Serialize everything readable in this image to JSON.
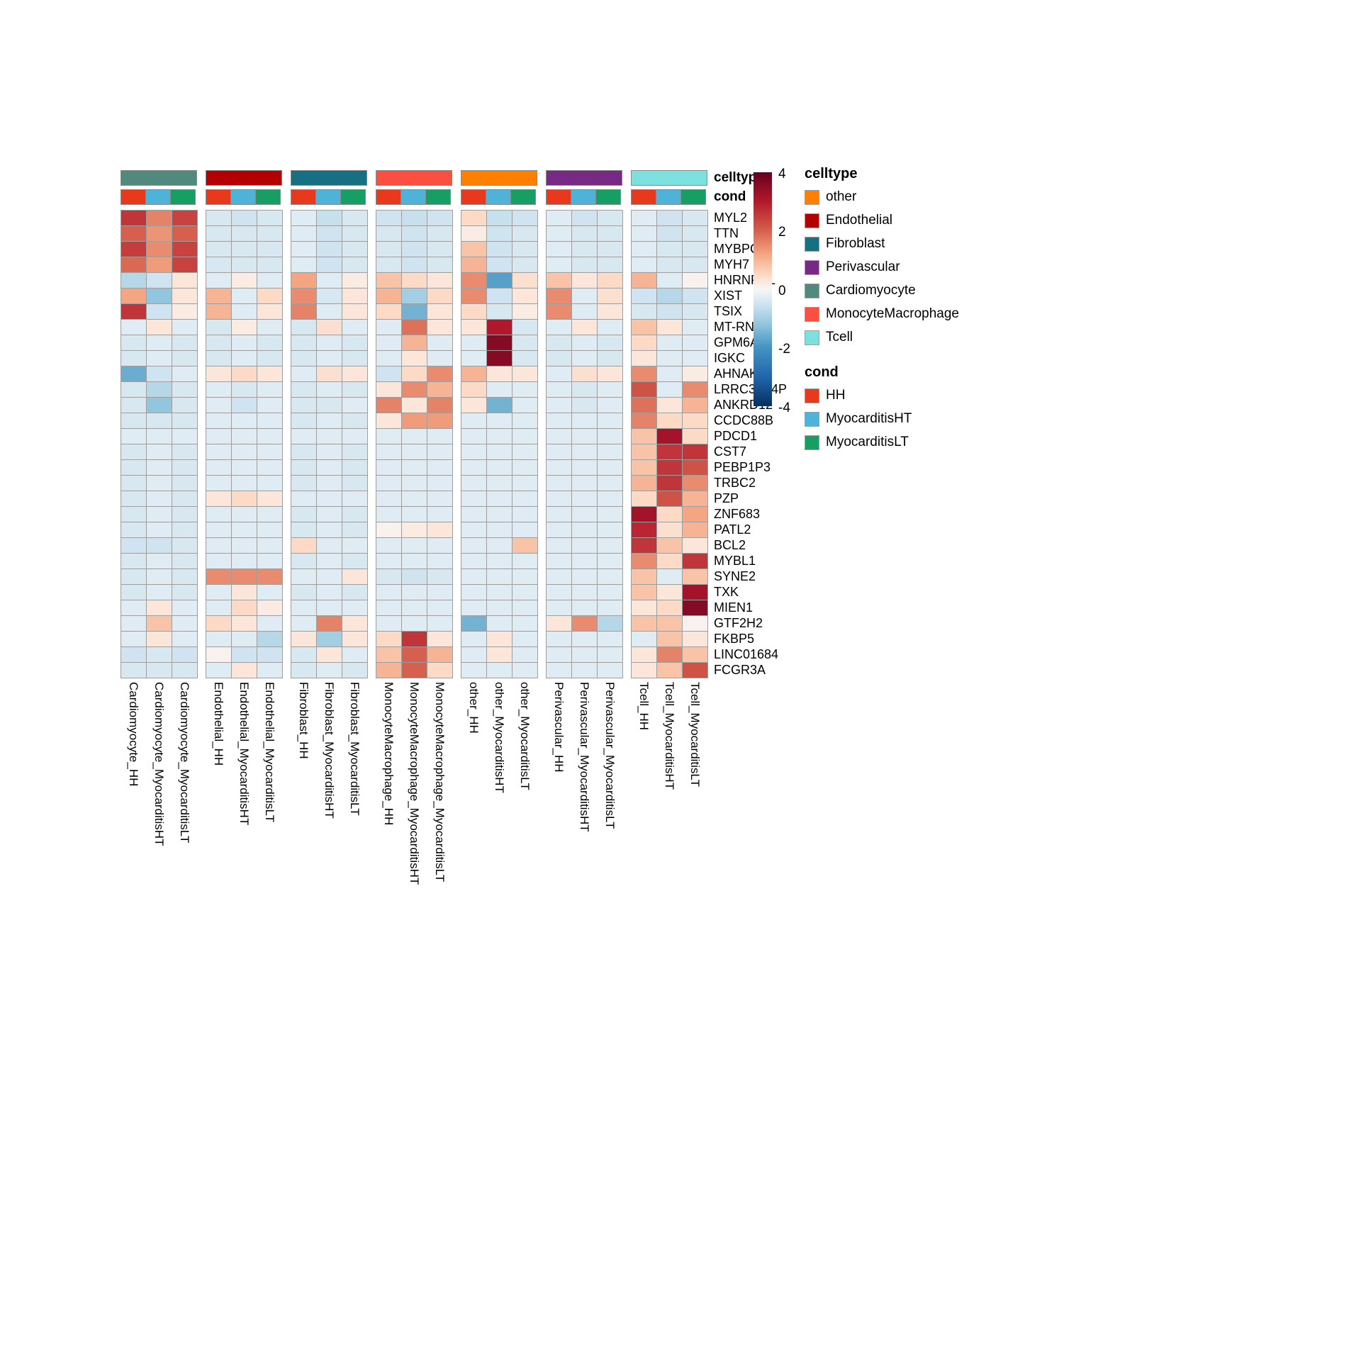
{
  "chart_data": {
    "type": "heatmap",
    "value_range": [
      -4,
      4
    ],
    "genes": [
      "MYL2",
      "TTN",
      "MYBPC3",
      "MYH7",
      "HNRNPDL",
      "XIST",
      "TSIX",
      "MT-RNR2",
      "GPM6A",
      "IGKC",
      "AHNAK",
      "LRRC37A4P",
      "ANKRD12",
      "CCDC88B",
      "PDCD1",
      "CST7",
      "PEBP1P3",
      "TRBC2",
      "PZP",
      "ZNF683",
      "PATL2",
      "BCL2",
      "MYBL1",
      "SYNE2",
      "TXK",
      "MIEN1",
      "GTF2H2",
      "FKBP5",
      "LINC01684",
      "FCGR3A"
    ],
    "groups": [
      {
        "name": "Cardiomyocyte",
        "color": "#52897F"
      },
      {
        "name": "Endothelial",
        "color": "#B30000"
      },
      {
        "name": "Fibroblast",
        "color": "#177082"
      },
      {
        "name": "MonocyteMacrophage",
        "color": "#FB4F42"
      },
      {
        "name": "other",
        "color": "#FF7F00"
      },
      {
        "name": "Perivascular",
        "color": "#762A83"
      },
      {
        "name": "Tcell",
        "color": "#7CE0DE"
      }
    ],
    "conds": [
      {
        "name": "HH",
        "color": "#E8391D"
      },
      {
        "name": "MyocarditisHT",
        "color": "#4FB2D9"
      },
      {
        "name": "MyocarditisLT",
        "color": "#169E64"
      }
    ],
    "column_labels": [
      "Cardiomyocyte_HH",
      "Cardiomyocyte_MyocarditisHT",
      "Cardiomyocyte_MyocarditisLT",
      "Endothelial_HH",
      "Endothelial_MyocarditisHT",
      "Endothelial_MyocarditisLT",
      "Fibroblast_HH",
      "Fibroblast_MyocarditisHT",
      "Fibroblast_MyocarditisLT",
      "MonocyteMacrophage_HH",
      "MonocyteMacrophage_MyocarditisHT",
      "MonocyteMacrophage_MyocarditisLT",
      "other_HH",
      "other_MyocarditisHT",
      "other_MyocarditisLT",
      "Perivascular_HH",
      "Perivascular_MyocarditisHT",
      "Perivascular_MyocarditisLT",
      "Tcell_HH",
      "Tcell_MyocarditisHT",
      "Tcell_MyocarditisLT"
    ],
    "values": [
      [
        2.6,
        1.6,
        2.4,
        -0.4,
        -0.5,
        -0.4,
        -0.3,
        -0.6,
        -0.4,
        -0.5,
        -0.6,
        -0.5,
        0.5,
        -0.6,
        -0.5,
        -0.3,
        -0.5,
        -0.4,
        -0.3,
        -0.5,
        -0.4
      ],
      [
        2.0,
        1.4,
        2.0,
        -0.4,
        -0.4,
        -0.4,
        -0.3,
        -0.5,
        -0.4,
        -0.4,
        -0.5,
        -0.4,
        0.2,
        -0.5,
        -0.4,
        -0.3,
        -0.4,
        -0.4,
        -0.3,
        -0.5,
        -0.4
      ],
      [
        2.5,
        1.5,
        2.4,
        -0.4,
        -0.4,
        -0.4,
        -0.3,
        -0.5,
        -0.4,
        -0.4,
        -0.5,
        -0.4,
        0.8,
        -0.5,
        -0.4,
        -0.3,
        -0.4,
        -0.4,
        -0.3,
        -0.4,
        -0.4
      ],
      [
        1.9,
        1.3,
        2.4,
        -0.4,
        -0.4,
        -0.4,
        -0.3,
        -0.5,
        -0.4,
        -0.4,
        -0.5,
        -0.4,
        1.0,
        -0.5,
        -0.4,
        -0.3,
        -0.4,
        -0.4,
        -0.3,
        -0.4,
        -0.4
      ],
      [
        -0.8,
        -0.5,
        0.3,
        -0.3,
        0.2,
        -0.3,
        1.2,
        -0.3,
        0.2,
        0.8,
        0.5,
        0.3,
        1.5,
        -1.8,
        0.4,
        0.8,
        0.3,
        0.5,
        1.0,
        -0.3,
        0.1
      ],
      [
        1.2,
        -1.2,
        0.3,
        1.0,
        -0.3,
        0.5,
        1.5,
        -0.4,
        0.3,
        1.0,
        -1.0,
        0.5,
        1.5,
        -0.5,
        0.3,
        1.5,
        -0.3,
        0.4,
        -0.5,
        -0.8,
        -0.5
      ],
      [
        2.6,
        -0.5,
        0.2,
        1.0,
        -0.3,
        0.3,
        1.6,
        -0.3,
        0.3,
        0.5,
        -1.5,
        0.3,
        0.5,
        -0.4,
        0.2,
        1.5,
        -0.3,
        0.3,
        -0.4,
        -0.5,
        -0.4
      ],
      [
        -0.3,
        0.3,
        -0.3,
        -0.4,
        0.2,
        -0.3,
        -0.4,
        0.4,
        -0.3,
        -0.3,
        1.8,
        0.3,
        0.3,
        3.0,
        -0.4,
        -0.3,
        0.3,
        -0.3,
        0.8,
        0.3,
        -0.3
      ],
      [
        -0.4,
        -0.3,
        -0.4,
        -0.4,
        -0.3,
        -0.4,
        -0.4,
        -0.3,
        -0.4,
        -0.3,
        1.0,
        -0.3,
        -0.3,
        3.6,
        -0.4,
        -0.4,
        -0.3,
        -0.4,
        0.5,
        -0.3,
        -0.3
      ],
      [
        -0.4,
        -0.3,
        -0.4,
        -0.4,
        -0.3,
        -0.4,
        -0.4,
        -0.3,
        -0.4,
        -0.3,
        0.3,
        -0.3,
        -0.3,
        3.6,
        -0.4,
        -0.4,
        -0.3,
        -0.4,
        0.3,
        -0.3,
        -0.3
      ],
      [
        -1.6,
        -0.5,
        -0.3,
        0.3,
        0.5,
        0.3,
        -0.3,
        0.4,
        0.3,
        -0.5,
        0.5,
        1.5,
        1.0,
        0.3,
        0.3,
        -0.3,
        0.4,
        0.3,
        1.5,
        -0.3,
        0.2
      ],
      [
        -0.4,
        -0.8,
        -0.4,
        -0.3,
        -0.4,
        -0.3,
        -0.4,
        -0.3,
        -0.4,
        0.3,
        1.5,
        1.0,
        0.5,
        -0.3,
        -0.3,
        -0.3,
        -0.4,
        -0.3,
        2.2,
        -0.3,
        1.5
      ],
      [
        -0.4,
        -1.2,
        -0.4,
        -0.3,
        -0.5,
        -0.3,
        -0.4,
        -0.4,
        -0.3,
        1.6,
        0.3,
        1.6,
        0.3,
        -1.5,
        -0.3,
        -0.3,
        -0.4,
        -0.3,
        1.8,
        0.3,
        1.0
      ],
      [
        -0.4,
        -0.4,
        -0.4,
        -0.3,
        -0.3,
        -0.3,
        -0.4,
        -0.3,
        -0.4,
        0.3,
        1.3,
        1.3,
        -0.3,
        -0.3,
        -0.3,
        -0.3,
        -0.3,
        -0.3,
        1.6,
        0.5,
        0.5
      ],
      [
        -0.3,
        -0.3,
        -0.3,
        -0.3,
        -0.3,
        -0.3,
        -0.3,
        -0.3,
        -0.3,
        -0.3,
        -0.3,
        -0.3,
        -0.3,
        -0.3,
        -0.3,
        -0.3,
        -0.3,
        -0.3,
        0.8,
        3.2,
        0.5
      ],
      [
        -0.4,
        -0.3,
        -0.4,
        -0.3,
        -0.3,
        -0.3,
        -0.4,
        -0.3,
        -0.4,
        -0.3,
        -0.3,
        -0.3,
        -0.3,
        -0.3,
        -0.3,
        -0.3,
        -0.3,
        -0.3,
        0.8,
        2.6,
        2.6
      ],
      [
        -0.4,
        -0.3,
        -0.4,
        -0.3,
        -0.3,
        -0.3,
        -0.4,
        -0.3,
        -0.4,
        -0.3,
        -0.3,
        -0.3,
        -0.3,
        -0.3,
        -0.3,
        -0.3,
        -0.3,
        -0.3,
        0.8,
        2.6,
        2.2
      ],
      [
        -0.4,
        -0.3,
        -0.4,
        -0.3,
        -0.3,
        -0.3,
        -0.4,
        -0.3,
        -0.4,
        -0.3,
        -0.3,
        -0.3,
        -0.3,
        -0.3,
        -0.3,
        -0.3,
        -0.3,
        -0.3,
        1.0,
        2.6,
        1.5
      ],
      [
        -0.4,
        -0.3,
        -0.4,
        0.3,
        0.5,
        0.3,
        -0.3,
        -0.3,
        -0.3,
        -0.3,
        -0.3,
        -0.3,
        -0.3,
        -0.3,
        -0.3,
        -0.3,
        -0.3,
        -0.3,
        0.5,
        2.2,
        1.0
      ],
      [
        -0.4,
        -0.3,
        -0.4,
        -0.3,
        -0.3,
        -0.3,
        -0.4,
        -0.3,
        -0.4,
        -0.3,
        -0.3,
        -0.3,
        -0.3,
        -0.3,
        -0.3,
        -0.3,
        -0.3,
        -0.3,
        3.2,
        0.5,
        1.2
      ],
      [
        -0.4,
        -0.3,
        -0.4,
        -0.3,
        -0.3,
        -0.3,
        -0.4,
        -0.3,
        -0.4,
        0.1,
        0.2,
        0.3,
        -0.3,
        -0.3,
        -0.3,
        -0.3,
        -0.3,
        -0.3,
        2.8,
        0.4,
        1.0
      ],
      [
        -0.5,
        -0.5,
        -0.4,
        -0.3,
        -0.3,
        -0.3,
        0.5,
        -0.3,
        -0.3,
        -0.3,
        -0.3,
        -0.3,
        -0.3,
        -0.3,
        0.8,
        -0.3,
        -0.3,
        -0.3,
        2.6,
        0.8,
        0.3
      ],
      [
        -0.4,
        -0.3,
        -0.4,
        -0.3,
        -0.3,
        -0.3,
        -0.4,
        -0.3,
        -0.4,
        -0.3,
        -0.3,
        -0.3,
        -0.3,
        -0.3,
        -0.3,
        -0.3,
        -0.3,
        -0.3,
        1.5,
        0.5,
        2.6
      ],
      [
        -0.4,
        -0.3,
        -0.4,
        1.5,
        1.5,
        1.5,
        -0.3,
        -0.3,
        0.3,
        -0.4,
        -0.5,
        -0.4,
        -0.3,
        -0.3,
        -0.3,
        -0.3,
        -0.3,
        -0.3,
        0.8,
        -0.3,
        0.8
      ],
      [
        -0.4,
        -0.3,
        -0.4,
        -0.3,
        0.3,
        -0.3,
        -0.4,
        -0.3,
        -0.4,
        -0.3,
        -0.3,
        -0.3,
        -0.3,
        -0.3,
        -0.3,
        -0.3,
        -0.3,
        -0.3,
        0.8,
        0.3,
        3.2
      ],
      [
        -0.3,
        0.3,
        -0.3,
        -0.3,
        0.5,
        0.2,
        -0.3,
        -0.3,
        -0.3,
        -0.3,
        -0.3,
        -0.3,
        -0.3,
        -0.3,
        -0.3,
        -0.3,
        -0.3,
        -0.3,
        0.3,
        0.5,
        3.6
      ],
      [
        -0.3,
        0.8,
        -0.3,
        0.5,
        0.3,
        -0.3,
        -0.3,
        1.6,
        0.3,
        -0.3,
        -0.3,
        -0.3,
        -1.5,
        -0.3,
        -0.3,
        0.3,
        1.5,
        -0.8,
        0.8,
        0.8,
        0.1
      ],
      [
        -0.3,
        0.3,
        -0.3,
        -0.3,
        -0.3,
        -0.8,
        0.3,
        -1.0,
        0.3,
        0.5,
        2.6,
        0.3,
        -0.3,
        0.3,
        -0.3,
        -0.3,
        -0.3,
        -0.3,
        -0.3,
        0.8,
        0.3
      ],
      [
        -0.5,
        -0.4,
        -0.5,
        0.1,
        -0.5,
        -0.5,
        -0.4,
        0.3,
        -0.3,
        0.8,
        2.0,
        1.0,
        -0.3,
        0.3,
        -0.3,
        -0.3,
        -0.3,
        -0.3,
        0.3,
        1.6,
        0.8
      ],
      [
        -0.4,
        -0.4,
        -0.4,
        -0.3,
        0.3,
        -0.3,
        -0.4,
        -0.3,
        -0.4,
        1.0,
        2.0,
        0.5,
        -0.3,
        -0.3,
        -0.3,
        -0.3,
        -0.3,
        -0.3,
        0.3,
        0.8,
        2.2
      ]
    ],
    "colorscale": [
      {
        "t": -1.0,
        "color": "#053061"
      },
      {
        "t": -0.75,
        "color": "#2166AC"
      },
      {
        "t": -0.5,
        "color": "#4393C3"
      },
      {
        "t": -0.3,
        "color": "#92C5DE"
      },
      {
        "t": -0.12,
        "color": "#D1E5F0"
      },
      {
        "t": 0.0,
        "color": "#F7F7F7"
      },
      {
        "t": 0.12,
        "color": "#FDDBC7"
      },
      {
        "t": 0.3,
        "color": "#F4A582"
      },
      {
        "t": 0.5,
        "color": "#D6604D"
      },
      {
        "t": 0.75,
        "color": "#B2182B"
      },
      {
        "t": 1.0,
        "color": "#67001F"
      }
    ]
  },
  "annotations": {
    "celltype_label": "celltype",
    "cond_label": "cond"
  },
  "legend": {
    "ticks": [
      "4",
      "2",
      "0",
      "-2",
      "-4"
    ],
    "celltype": {
      "title": "celltype",
      "items": [
        {
          "label": "other",
          "color": "#FF7F00"
        },
        {
          "label": "Endothelial",
          "color": "#B30000"
        },
        {
          "label": "Fibroblast",
          "color": "#177082"
        },
        {
          "label": "Perivascular",
          "color": "#762A83"
        },
        {
          "label": "Cardiomyocyte",
          "color": "#52897F"
        },
        {
          "label": "MonocyteMacrophage",
          "color": "#FB4F42"
        },
        {
          "label": "Tcell",
          "color": "#7CE0DE"
        }
      ]
    },
    "cond": {
      "title": "cond",
      "items": [
        {
          "label": "HH",
          "color": "#E8391D"
        },
        {
          "label": "MyocarditisHT",
          "color": "#4FB2D9"
        },
        {
          "label": "MyocarditisLT",
          "color": "#169E64"
        }
      ]
    }
  }
}
